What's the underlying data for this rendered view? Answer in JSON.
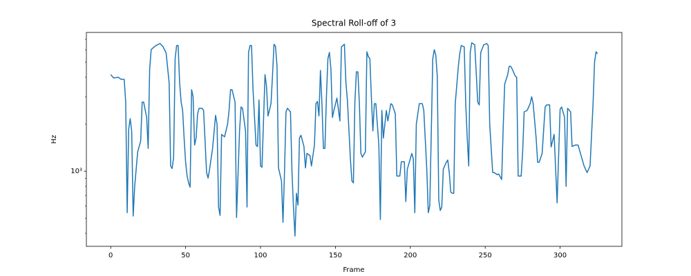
{
  "chart_data": {
    "type": "line",
    "title": "Spectral Roll-off of 3",
    "xlabel": "Frame",
    "ylabel": "Hz",
    "yscale": "log",
    "color": "#1f77b4",
    "xlim": [
      -16.25,
      341.25
    ],
    "xticks": [
      0,
      50,
      100,
      150,
      200,
      250,
      300
    ],
    "ylim": [
      330,
      7750
    ],
    "yticks": [
      {
        "value": 1000,
        "label": "10³"
      }
    ],
    "yminorticks": [
      400,
      500,
      600,
      700,
      800,
      900,
      2000,
      3000,
      4000,
      5000,
      6000,
      7000
    ],
    "x": [
      0,
      2,
      5,
      7,
      9,
      10,
      11,
      12,
      13,
      14,
      15,
      16,
      18,
      20,
      21,
      22,
      24,
      25,
      26,
      27,
      29,
      31,
      33,
      35,
      37,
      39,
      40,
      41,
      42,
      43,
      44,
      45,
      46,
      47,
      48,
      49,
      50,
      51,
      52,
      53,
      54,
      55,
      56,
      57,
      58,
      59,
      61,
      62,
      64,
      65,
      66,
      68,
      70,
      71,
      72,
      73,
      74,
      76,
      78,
      79,
      80,
      81,
      83,
      84,
      86,
      87,
      88,
      90,
      91,
      92,
      93,
      94,
      95,
      97,
      98,
      99,
      100,
      101,
      103,
      104,
      105,
      107,
      108,
      109,
      110,
      111,
      112,
      114,
      115,
      116,
      117,
      118,
      120,
      121,
      122,
      123,
      124,
      125,
      126,
      127,
      129,
      130,
      131,
      133,
      134,
      136,
      137,
      138,
      139,
      140,
      141,
      142,
      143,
      144,
      145,
      146,
      147,
      148,
      149,
      151,
      153,
      154,
      156,
      157,
      158,
      160,
      161,
      162,
      163,
      164,
      165,
      166,
      167,
      168,
      170,
      171,
      172,
      173,
      174,
      175,
      176,
      177,
      179,
      180,
      181,
      182,
      184,
      185,
      187,
      188,
      190,
      191,
      193,
      194,
      196,
      197,
      198,
      201,
      202,
      203,
      204,
      206,
      208,
      209,
      211,
      212,
      213,
      215,
      216,
      217,
      218,
      219,
      220,
      221,
      222,
      224,
      225,
      226,
      227,
      228,
      229,
      230,
      232,
      233,
      234,
      236,
      237,
      238,
      239,
      240,
      241,
      243,
      244,
      245,
      246,
      247,
      249,
      251,
      252,
      253,
      255,
      256,
      258,
      259,
      261,
      262,
      263,
      265,
      266,
      267,
      268,
      270,
      271,
      272,
      274,
      275,
      276,
      278,
      280,
      281,
      282,
      284,
      285,
      286,
      288,
      290,
      291,
      293,
      294,
      296,
      298,
      300,
      301,
      303,
      304,
      305,
      307,
      308,
      310,
      312,
      314,
      316,
      318,
      320,
      322,
      323,
      324,
      325
    ],
    "values": [
      4160,
      3960,
      4000,
      3880,
      3880,
      2770,
      542,
      1860,
      2170,
      1810,
      516,
      799,
      1330,
      1560,
      2770,
      2770,
      2210,
      1400,
      4520,
      6010,
      6260,
      6450,
      6580,
      6260,
      5710,
      3690,
      1080,
      1040,
      1230,
      5260,
      6390,
      6390,
      3690,
      2770,
      2450,
      1630,
      1140,
      931,
      841,
      790,
      3330,
      3000,
      1470,
      1630,
      2330,
      2530,
      2530,
      2450,
      980,
      903,
      1030,
      1400,
      2280,
      2000,
      589,
      521,
      1720,
      1660,
      2000,
      2450,
      3330,
      3330,
      2770,
      505,
      1810,
      2580,
      2530,
      1810,
      589,
      5770,
      6390,
      6390,
      3330,
      1470,
      1440,
      2860,
      1080,
      1060,
      4160,
      3500,
      2260,
      2710,
      4080,
      6510,
      6320,
      4750,
      1050,
      867,
      470,
      980,
      2400,
      2530,
      2400,
      1000,
      589,
      384,
      722,
      607,
      1630,
      1700,
      1440,
      1050,
      1300,
      1260,
      1080,
      1470,
      2710,
      2800,
      2260,
      4420,
      2710,
      1400,
      1400,
      3000,
      5260,
      5770,
      4520,
      2210,
      2450,
      2940,
      2100,
      6260,
      6510,
      3690,
      2860,
      1200,
      867,
      841,
      2770,
      4330,
      4330,
      2710,
      1300,
      1230,
      1330,
      5830,
      5420,
      5260,
      3000,
      1810,
      2710,
      2710,
      1470,
      490,
      2450,
      1630,
      2450,
      2100,
      2710,
      2660,
      2330,
      931,
      931,
      1150,
      1150,
      639,
      1030,
      1300,
      1200,
      542,
      2000,
      2710,
      2710,
      2450,
      1030,
      542,
      601,
      5260,
      6010,
      5540,
      4080,
      652,
      560,
      589,
      1030,
      1140,
      1180,
      980,
      735,
      722,
      722,
      2710,
      4630,
      5650,
      6390,
      6260,
      2710,
      1630,
      1080,
      5770,
      6650,
      6450,
      4270,
      2770,
      2660,
      5770,
      6450,
      6580,
      6390,
      2000,
      980,
      980,
      950,
      960,
      885,
      1900,
      3610,
      4160,
      4700,
      4700,
      4520,
      4080,
      4000,
      931,
      931,
      1330,
      2400,
      2450,
      2710,
      3000,
      2710,
      1630,
      1140,
      1140,
      1300,
      2580,
      2660,
      2660,
      1430,
      1720,
      626,
      2500,
      2580,
      2210,
      799,
      2530,
      2400,
      1440,
      1470,
      1470,
      1260,
      1080,
      980,
      1080,
      2710,
      5000,
      5830,
      5650
    ]
  }
}
